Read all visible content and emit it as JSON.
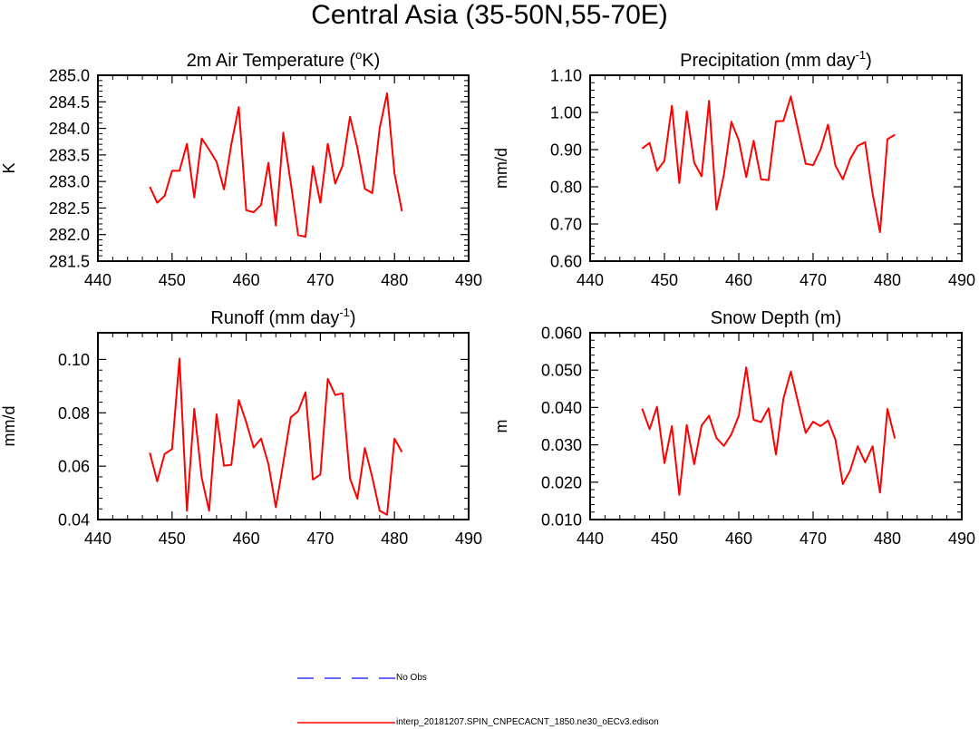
{
  "title": "Central Asia (35-50N,55-70E)",
  "colors": {
    "model": "#ff0000",
    "obs": "#3333ff",
    "axis": "#000000"
  },
  "legend": [
    {
      "label": "No Obs",
      "color": "#3333ff",
      "dash": true
    },
    {
      "label": "interp_20181207.SPIN_CNPECACNT_1850.ne30_oECv3.edison",
      "color": "#ff0000",
      "dash": false
    }
  ],
  "chart_data": [
    {
      "type": "line",
      "title_main": "2m Air Temperature (",
      "title_sup": "o",
      "title_tail": "K)",
      "ylabel": "K",
      "xlim": [
        440,
        490
      ],
      "ylim": [
        281.5,
        285.0
      ],
      "xticks": [
        440,
        450,
        460,
        470,
        480,
        490
      ],
      "xtick_labels": [
        "440",
        "450",
        "460",
        "470",
        "480",
        "490"
      ],
      "yticks": [
        281.5,
        282.0,
        282.5,
        283.0,
        283.5,
        284.0,
        284.5,
        285.0
      ],
      "ytick_labels": [
        "281.5",
        "282.0",
        "282.5",
        "283.0",
        "283.5",
        "284.0",
        "284.5",
        "285.0"
      ],
      "series": [
        {
          "name": "interp_20181207.SPIN_CNPECACNT_1850.ne30_oECv3.edison",
          "x": [
            447,
            448,
            449,
            450,
            451,
            452,
            453,
            454,
            455,
            456,
            457,
            458,
            459,
            460,
            461,
            462,
            463,
            464,
            465,
            466,
            467,
            468,
            469,
            470,
            471,
            472,
            473,
            474,
            475,
            476,
            477,
            478,
            479,
            480,
            481
          ],
          "values": [
            282.9,
            282.6,
            282.73,
            283.2,
            283.2,
            283.71,
            282.7,
            283.81,
            283.6,
            283.37,
            282.85,
            283.7,
            284.4,
            282.46,
            282.42,
            282.56,
            283.35,
            282.17,
            283.92,
            282.98,
            281.99,
            281.96,
            283.29,
            282.6,
            283.71,
            282.96,
            283.3,
            284.22,
            283.63,
            282.86,
            282.78,
            284.0,
            284.66,
            283.15,
            282.44
          ]
        }
      ]
    },
    {
      "type": "line",
      "title_main": "Precipitation (mm day",
      "title_sup": "-1",
      "title_tail": ")",
      "ylabel": "mm/d",
      "xlim": [
        440,
        490
      ],
      "ylim": [
        0.6,
        1.1
      ],
      "xticks": [
        440,
        450,
        460,
        470,
        480,
        490
      ],
      "xtick_labels": [
        "440",
        "450",
        "460",
        "470",
        "480",
        "490"
      ],
      "yticks": [
        0.6,
        0.7,
        0.8,
        0.9,
        1.0,
        1.1
      ],
      "ytick_labels": [
        "0.60",
        "0.70",
        "0.80",
        "0.90",
        "1.00",
        "1.10"
      ],
      "series": [
        {
          "name": "interp_20181207.SPIN_CNPECACNT_1850.ne30_oECv3.edison",
          "x": [
            447,
            448,
            449,
            450,
            451,
            452,
            453,
            454,
            455,
            456,
            457,
            458,
            459,
            460,
            461,
            462,
            463,
            464,
            465,
            466,
            467,
            468,
            469,
            470,
            471,
            472,
            473,
            474,
            475,
            476,
            477,
            478,
            479,
            480,
            481
          ],
          "values": [
            0.903,
            0.918,
            0.843,
            0.87,
            1.018,
            0.81,
            1.003,
            0.865,
            0.828,
            1.031,
            0.738,
            0.833,
            0.975,
            0.925,
            0.826,
            0.924,
            0.82,
            0.818,
            0.976,
            0.977,
            1.043,
            0.952,
            0.862,
            0.858,
            0.9,
            0.967,
            0.857,
            0.82,
            0.875,
            0.91,
            0.92,
            0.782,
            0.678,
            0.928,
            0.94
          ]
        }
      ]
    },
    {
      "type": "line",
      "title_main": "Runoff (mm day",
      "title_sup": "-1",
      "title_tail": ")",
      "ylabel": "mm/d",
      "xlim": [
        440,
        490
      ],
      "ylim": [
        0.04,
        0.11
      ],
      "xticks": [
        440,
        450,
        460,
        470,
        480,
        490
      ],
      "xtick_labels": [
        "440",
        "450",
        "460",
        "470",
        "480",
        "490"
      ],
      "yticks": [
        0.04,
        0.06,
        0.08,
        0.1
      ],
      "ytick_labels": [
        "0.04",
        "0.06",
        "0.08",
        "0.10"
      ],
      "series": [
        {
          "name": "interp_20181207.SPIN_CNPECACNT_1850.ne30_oECv3.edison",
          "x": [
            447,
            448,
            449,
            450,
            451,
            452,
            453,
            454,
            455,
            456,
            457,
            458,
            459,
            460,
            461,
            462,
            463,
            464,
            465,
            466,
            467,
            468,
            469,
            470,
            471,
            472,
            473,
            474,
            475,
            476,
            477,
            478,
            479,
            480,
            481
          ],
          "values": [
            0.065,
            0.0543,
            0.0646,
            0.0664,
            0.1003,
            0.0433,
            0.0815,
            0.0557,
            0.0433,
            0.0795,
            0.0602,
            0.0605,
            0.0848,
            0.0765,
            0.067,
            0.0703,
            0.0608,
            0.0446,
            0.0613,
            0.0783,
            0.0806,
            0.0877,
            0.055,
            0.0569,
            0.0927,
            0.0867,
            0.0873,
            0.0554,
            0.0478,
            0.0668,
            0.0558,
            0.0433,
            0.0418,
            0.0703,
            0.0653
          ]
        }
      ]
    },
    {
      "type": "line",
      "title_main": "Snow Depth (m)",
      "title_sup": "",
      "title_tail": "",
      "ylabel": "m",
      "xlim": [
        440,
        490
      ],
      "ylim": [
        0.01,
        0.06
      ],
      "xticks": [
        440,
        450,
        460,
        470,
        480,
        490
      ],
      "xtick_labels": [
        "440",
        "450",
        "460",
        "470",
        "480",
        "490"
      ],
      "yticks": [
        0.01,
        0.02,
        0.03,
        0.04,
        0.05,
        0.06
      ],
      "ytick_labels": [
        "0.010",
        "0.020",
        "0.030",
        "0.040",
        "0.050",
        "0.060"
      ],
      "series": [
        {
          "name": "interp_20181207.SPIN_CNPECACNT_1850.ne30_oECv3.edison",
          "x": [
            447,
            448,
            449,
            450,
            451,
            452,
            453,
            454,
            455,
            456,
            457,
            458,
            459,
            460,
            461,
            462,
            463,
            464,
            465,
            466,
            467,
            468,
            469,
            470,
            471,
            472,
            473,
            474,
            475,
            476,
            477,
            478,
            479,
            480,
            481
          ],
          "values": [
            0.0397,
            0.0342,
            0.0402,
            0.0251,
            0.035,
            0.0166,
            0.0353,
            0.0248,
            0.0352,
            0.0378,
            0.0318,
            0.0297,
            0.0328,
            0.0378,
            0.0507,
            0.0367,
            0.0361,
            0.0398,
            0.0274,
            0.0423,
            0.0496,
            0.0412,
            0.0332,
            0.0362,
            0.035,
            0.0365,
            0.0314,
            0.0195,
            0.0232,
            0.0296,
            0.0253,
            0.0296,
            0.0172,
            0.0396,
            0.0317
          ]
        }
      ]
    }
  ]
}
